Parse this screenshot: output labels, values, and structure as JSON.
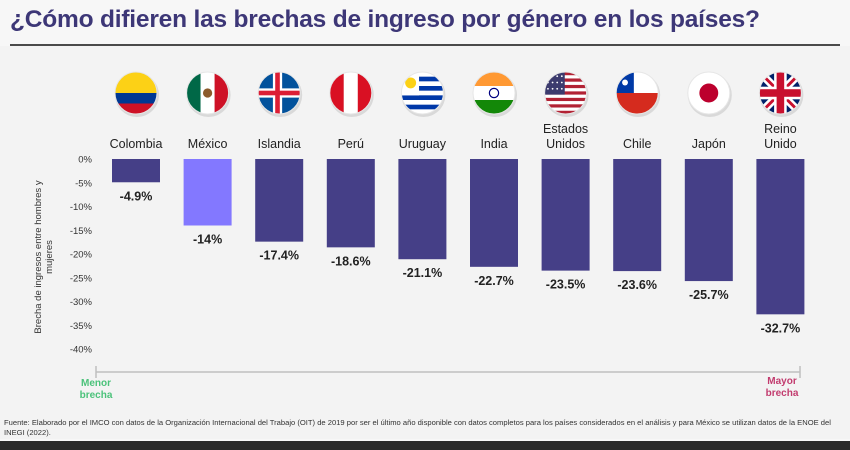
{
  "header": {
    "title": "¿Cómo difieren las brechas de ingreso por género en los países?"
  },
  "colors": {
    "bar": "#453f87",
    "highlight_bar": "#8378ff",
    "title": "#3d3777",
    "low_label": "#4bc27a",
    "high_label": "#c23b6e"
  },
  "chart_data": {
    "type": "bar",
    "categories": [
      "Colombia",
      "México",
      "Islandia",
      "Perú",
      "Uruguay",
      "India",
      "Estados Unidos",
      "Chile",
      "Japón",
      "Reino Unido"
    ],
    "category_lines": [
      [
        "Colombia"
      ],
      [
        "México"
      ],
      [
        "Islandia"
      ],
      [
        "Perú"
      ],
      [
        "Uruguay"
      ],
      [
        "India"
      ],
      [
        "Estados",
        "Unidos"
      ],
      [
        "Chile"
      ],
      [
        "Japón"
      ],
      [
        "Reino",
        "Unido"
      ]
    ],
    "values": [
      -4.9,
      -14,
      -17.4,
      -18.6,
      -21.1,
      -22.7,
      -23.5,
      -23.6,
      -25.7,
      -32.7
    ],
    "data_labels": [
      "-4.9%",
      "-14%",
      "-17.4%",
      "-18.6%",
      "-21.1%",
      "-22.7%",
      "-23.5%",
      "-23.6%",
      "-25.7%",
      "-32.7%"
    ],
    "highlight_index": 1,
    "ylabel": "Brecha de ingresos entre hombres y mujeres",
    "ylim": [
      -40,
      0
    ],
    "yticks": [
      0,
      -5,
      -10,
      -15,
      -20,
      -25,
      -30,
      -35,
      -40
    ],
    "ytick_labels": [
      "0%",
      "-5%",
      "-10%",
      "-15%",
      "-20%",
      "-25%",
      "-30%",
      "-35%",
      "-40%"
    ],
    "icons": [
      "flag-colombia",
      "flag-mexico",
      "flag-iceland",
      "flag-peru",
      "flag-uruguay",
      "flag-india",
      "flag-usa",
      "flag-chile",
      "flag-japan",
      "flag-uk"
    ],
    "grid": false,
    "scale_low_label": "Menor brecha",
    "scale_high_label": "Mayor brecha"
  },
  "footnote": "Fuente: Elaborado por el IMCO con datos de la Organización Internacional del Trabajo (OIT) de 2019 por ser el último año disponible con datos completos para los países considerados en el análisis y para México se utilizan datos de la ENOE del INEGI (2022)."
}
